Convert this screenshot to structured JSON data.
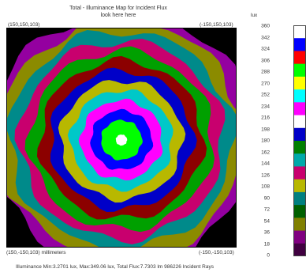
{
  "title": {
    "line1": "Total - Illuminance Map for Incident Flux",
    "line2": "look here here"
  },
  "corners": {
    "top_left": "(150,150,103)",
    "top_right": "(-150,150,103)",
    "bottom_left": "(150,-150,103) millimeters",
    "bottom_right": "(-150,-150,103)"
  },
  "scale": {
    "unit": "lux",
    "ticks": [
      "360",
      "342",
      "324",
      "306",
      "288",
      "270",
      "252",
      "234",
      "216",
      "198",
      "180",
      "162",
      "144",
      "126",
      "108",
      "90",
      "72",
      "54",
      "36",
      "18",
      "0"
    ]
  },
  "footer": "Illuminance Min:3.2701 lux, Max:349.06 lux, Total Flux:7.7303 lm 986226 Incident Rays",
  "colors": {
    "background": "#000000",
    "bands_outer_to_inner": [
      "#9400a0",
      "#8b8b00",
      "#008a8a",
      "#c8006e",
      "#00a000",
      "#8c0000",
      "#0000c8",
      "#b8b800",
      "#00c8c8",
      "#ff00ff",
      "#0000ff",
      "#00ff00",
      "#ffffff"
    ],
    "legend_top_to_bottom": [
      "#ffffff",
      "#0000ff",
      "#ff0000",
      "#00ff00",
      "#ffff00",
      "#00ffff",
      "#ff00ff",
      "#ffffff",
      "#0000c8",
      "#008000",
      "#00aaaa",
      "#c8006e",
      "#b8b800",
      "#008080",
      "#006000",
      "#808000",
      "#800080",
      "#400040"
    ]
  }
}
